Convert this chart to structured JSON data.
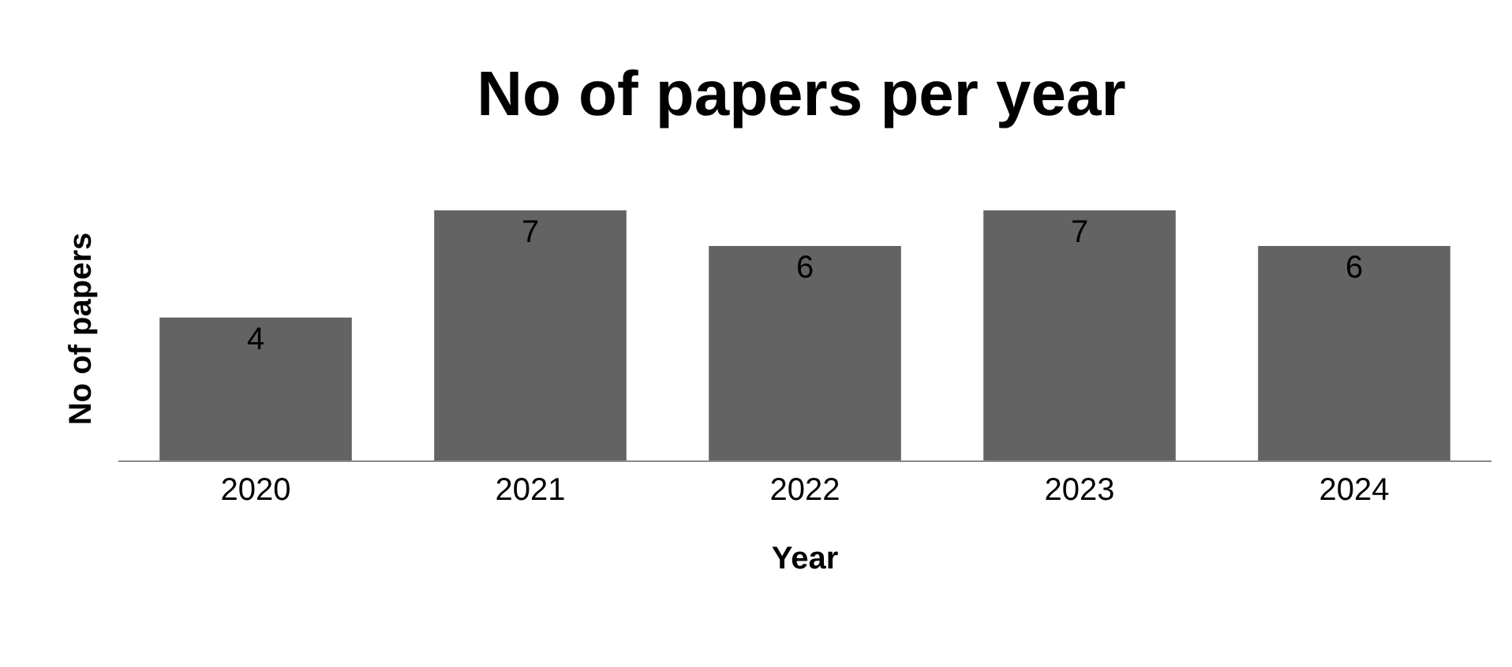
{
  "chart_data": {
    "type": "bar",
    "title": "No of papers per year",
    "xlabel": "Year",
    "ylabel": "No of papers",
    "categories": [
      "2020",
      "2021",
      "2022",
      "2023",
      "2024"
    ],
    "values": [
      4,
      7,
      6,
      7,
      6
    ],
    "color": "#636363",
    "data_labels": true,
    "tick_labels": "x",
    "grid": false,
    "legend": false
  }
}
